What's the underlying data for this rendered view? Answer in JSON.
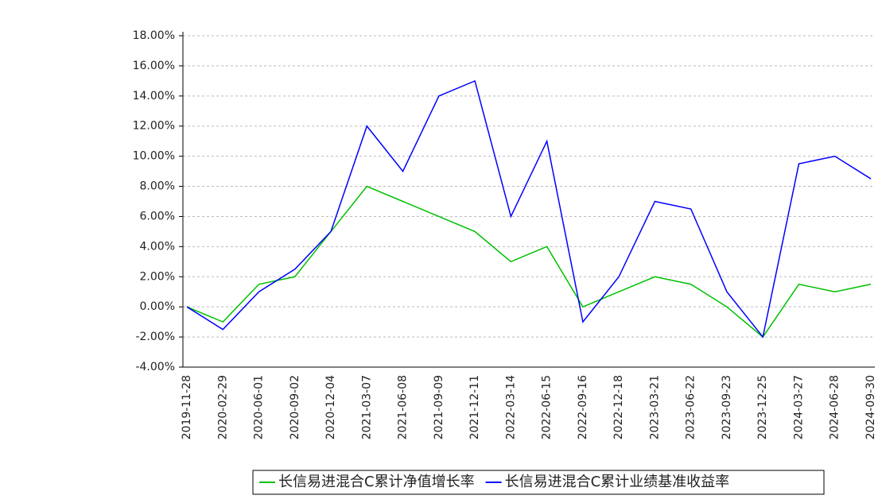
{
  "chart_data": {
    "type": "line",
    "categories": [
      "2019-11-28",
      "2020-02-29",
      "2020-06-01",
      "2020-09-02",
      "2020-12-04",
      "2021-03-07",
      "2021-06-08",
      "2021-09-09",
      "2021-12-11",
      "2022-03-14",
      "2022-06-15",
      "2022-09-16",
      "2022-12-18",
      "2023-03-21",
      "2023-06-22",
      "2023-09-23",
      "2023-12-25",
      "2024-03-27",
      "2024-06-28",
      "2024-09-30"
    ],
    "series": [
      {
        "name": "长信易进混合C累计净值增长率",
        "color": "#00c000",
        "values": [
          0,
          -1,
          1.5,
          2,
          5,
          8,
          7,
          6,
          5,
          3,
          4,
          0,
          1,
          2,
          1.5,
          0,
          -2,
          1.5,
          1,
          1.5
        ]
      },
      {
        "name": "长信易进混合C累计业绩基准收益率",
        "color": "#0000ff",
        "values": [
          0,
          -1.5,
          1,
          2.5,
          5,
          12,
          9,
          14,
          15,
          6,
          11,
          -1,
          2,
          7,
          6.5,
          1,
          -2,
          9.5,
          10,
          8.5
        ]
      }
    ],
    "ylim": [
      -4,
      18
    ],
    "yticks": [
      {
        "value": -4,
        "label": "-4.00%"
      },
      {
        "value": -2,
        "label": "-2.00%"
      },
      {
        "value": 0,
        "label": "0.00%"
      },
      {
        "value": 2,
        "label": "2.00%"
      },
      {
        "value": 4,
        "label": "4.00%"
      },
      {
        "value": 6,
        "label": "6.00%"
      },
      {
        "value": 8,
        "label": "8.00%"
      },
      {
        "value": 10,
        "label": "10.00%"
      },
      {
        "value": 12,
        "label": "12.00%"
      },
      {
        "value": 14,
        "label": "14.00%"
      },
      {
        "value": 16,
        "label": "16.00%"
      },
      {
        "value": 18,
        "label": "18.00%"
      }
    ],
    "grid": true
  }
}
